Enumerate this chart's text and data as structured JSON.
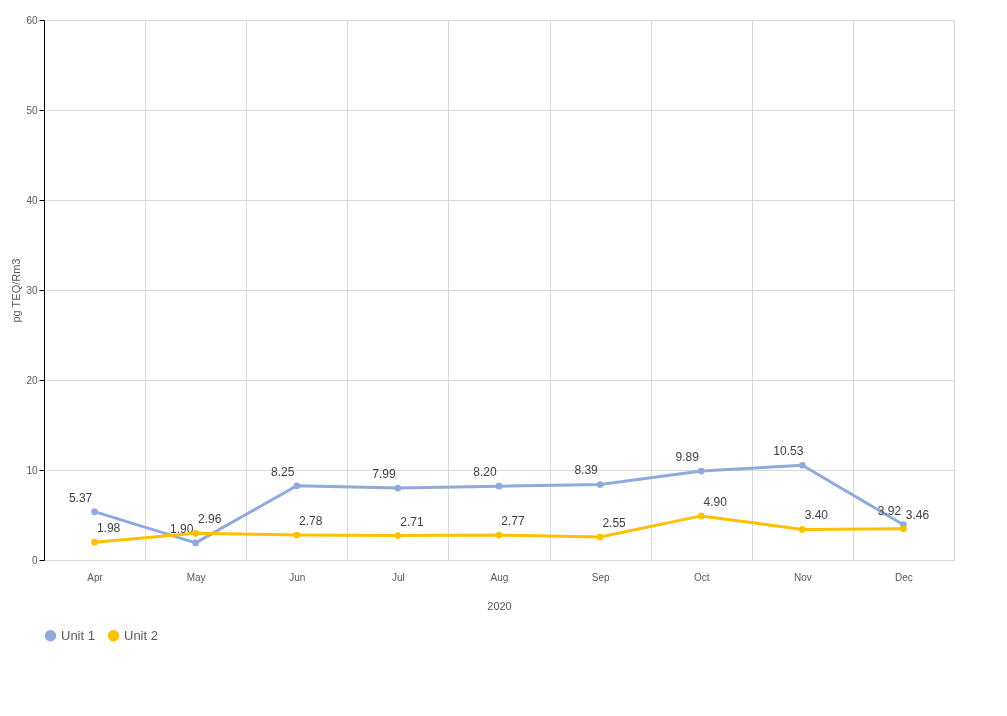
{
  "chart_data": {
    "type": "line",
    "xlabel": "2020",
    "ylabel": "pg TEQ/Rm3",
    "categories": [
      "Apr",
      "May",
      "Jun",
      "Jul",
      "Aug",
      "Sep",
      "Oct",
      "Nov",
      "Dec"
    ],
    "series": [
      {
        "name": "Unit 1",
        "color": "#8faadc",
        "values": [
          5.37,
          1.9,
          8.25,
          7.99,
          8.2,
          8.39,
          9.89,
          10.53,
          3.92
        ],
        "value_labels": [
          "5.37",
          "1.90",
          "8.25",
          "7.99",
          "8.20",
          "8.39",
          "9.89",
          "10.53",
          "3.92"
        ]
      },
      {
        "name": "Unit 2",
        "color": "#ffc000",
        "values": [
          1.98,
          2.96,
          2.78,
          2.71,
          2.77,
          2.55,
          4.9,
          3.4,
          3.46
        ],
        "value_labels": [
          "1.98",
          "2.96",
          "2.78",
          "2.71",
          "2.77",
          "2.55",
          "4.90",
          "3.40",
          "3.46"
        ]
      }
    ],
    "ylim": [
      0,
      60
    ],
    "yticks": [
      0,
      10,
      20,
      30,
      40,
      50,
      60
    ],
    "grid": true,
    "legend": "bottom",
    "marker": "circle",
    "line_style": "solid"
  }
}
